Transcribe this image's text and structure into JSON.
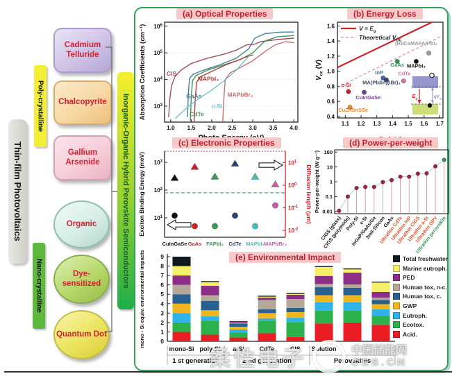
{
  "left_panel": {
    "main": "Thin-film Photovoltaics",
    "poly": "Poly-crystalline",
    "nano": "Nano-crystalline",
    "perovskite": "Inorganic-Organic Hybrid Perovskite Semiconductors",
    "items": [
      {
        "label": "Cadmium Telluride"
      },
      {
        "label": "Chalcopyrite"
      },
      {
        "label": "Gallium Arsenide"
      },
      {
        "label": "Organic"
      },
      {
        "label": "Dye-sensitized"
      },
      {
        "label": "Quantum Dot"
      }
    ]
  },
  "panels": {
    "a": "(a) Optical Properties",
    "b": "(b) Energy Loss",
    "c": "(c) Electronic Properties",
    "d": "(d) Power-per-weight",
    "e": "(e) Environmental Impact"
  },
  "wm": {
    "cn1": "柔性电子",
    "cn2": "中国储能网",
    "site": "CES.CN"
  },
  "chart_data": [
    {
      "id": "a",
      "type": "line",
      "title": "(a) Optical Properties",
      "xlabel": "Photo Energy (eV)",
      "ylabel": "Absorption Coefficients (cm⁻¹)",
      "xticks": [
        1.0,
        1.5,
        2.0,
        2.5,
        3.0,
        3.5,
        4.0
      ],
      "yticks_exp": [
        3,
        4,
        5,
        6
      ],
      "xrange": [
        0.85,
        4.1
      ],
      "ylog_range": [
        2.4,
        6.15
      ],
      "series": [
        {
          "name": "CIS",
          "color": "#9b4d62",
          "label_pos": [
            0.9,
            4.15
          ],
          "points": [
            [
              0.95,
              2.6
            ],
            [
              0.98,
              3.3
            ],
            [
              1.02,
              3.75
            ],
            [
              1.1,
              4.1
            ],
            [
              1.25,
              4.35
            ],
            [
              1.5,
              4.6
            ],
            [
              1.9,
              4.8
            ],
            [
              2.3,
              4.95
            ],
            [
              2.6,
              5.1
            ],
            [
              2.85,
              5.3
            ],
            [
              3.0,
              5.3
            ],
            [
              3.2,
              5.42
            ],
            [
              3.6,
              5.5
            ],
            [
              4.0,
              5.55
            ]
          ]
        },
        {
          "name": "GaAs",
          "color": "#44809c",
          "label_pos": [
            1.38,
            3.3
          ],
          "points": [
            [
              1.41,
              2.6
            ],
            [
              1.43,
              3.5
            ],
            [
              1.46,
              4.05
            ],
            [
              1.55,
              4.2
            ],
            [
              1.8,
              4.35
            ],
            [
              2.2,
              4.55
            ],
            [
              2.6,
              4.8
            ],
            [
              2.9,
              5.15
            ],
            [
              3.05,
              5.55
            ],
            [
              3.3,
              5.72
            ],
            [
              3.7,
              5.78
            ],
            [
              4.0,
              5.78
            ]
          ]
        },
        {
          "name": "CdTe",
          "color": "#3f9456",
          "label_pos": [
            1.46,
            2.62
          ],
          "points": [
            [
              1.48,
              2.45
            ],
            [
              1.5,
              3.3
            ],
            [
              1.53,
              3.95
            ],
            [
              1.62,
              4.15
            ],
            [
              1.9,
              4.35
            ],
            [
              2.3,
              4.55
            ],
            [
              2.7,
              4.75
            ],
            [
              3.0,
              5.0
            ],
            [
              3.3,
              5.45
            ],
            [
              3.6,
              5.6
            ],
            [
              4.0,
              5.65
            ]
          ]
        },
        {
          "name": "MAPbI₃",
          "color": "#b2413e",
          "label_pos": [
            1.66,
            3.95
          ],
          "points": [
            [
              1.57,
              2.4
            ],
            [
              1.6,
              3.3
            ],
            [
              1.63,
              3.9
            ],
            [
              1.72,
              4.1
            ],
            [
              2.0,
              4.3
            ],
            [
              2.35,
              4.55
            ],
            [
              2.6,
              4.7
            ],
            [
              2.85,
              4.85
            ],
            [
              3.0,
              4.92
            ]
          ]
        },
        {
          "name": "MAPbBr₃",
          "color": "#cb6d6d",
          "label_pos": [
            2.38,
            3.35
          ],
          "points": [
            [
              2.27,
              2.45
            ],
            [
              2.3,
              3.4
            ],
            [
              2.33,
              4.0
            ],
            [
              2.45,
              4.25
            ],
            [
              2.7,
              4.45
            ],
            [
              3.0,
              4.7
            ],
            [
              3.3,
              5.05
            ],
            [
              3.55,
              5.3
            ],
            [
              3.8,
              5.42
            ],
            [
              4.0,
              5.38
            ]
          ]
        },
        {
          "name": "c-Si",
          "color": "#72c3c9",
          "label_pos": [
            2.0,
            2.92
          ],
          "points": [
            [
              1.12,
              2.55
            ],
            [
              1.4,
              2.95
            ],
            [
              1.7,
              3.3
            ],
            [
              2.0,
              3.6
            ],
            [
              2.3,
              3.95
            ],
            [
              2.6,
              4.35
            ],
            [
              2.8,
              4.7
            ],
            [
              2.95,
              4.95
            ]
          ]
        }
      ]
    },
    {
      "id": "b",
      "type": "scatter",
      "title": "(b) Energy Loss",
      "xlabel": {
        "pre": "E",
        "sub": "g",
        "post": " (eV)",
        "italic": true
      },
      "ylabel": {
        "pre": "V",
        "sub": "oc",
        "post": " (V)",
        "italic": true
      },
      "xticks": [
        1.1,
        1.2,
        1.3,
        1.4,
        1.5,
        1.6,
        1.7
      ],
      "yticks": [
        0.4,
        0.6,
        0.8,
        1.0,
        1.2,
        1.4,
        1.6
      ],
      "xrange": [
        1.05,
        1.72
      ],
      "yrange": [
        0.38,
        1.65
      ],
      "lines": [
        {
          "x1": 1.05,
          "y1": 1.05,
          "x2": 1.72,
          "y2": 1.72,
          "color": "#c9232b",
          "width": 2.2,
          "dash": ""
        },
        {
          "x1": 1.05,
          "y1": 0.785,
          "x2": 1.72,
          "y2": 1.475,
          "color": "#d98aa5",
          "width": 1.2,
          "dash": "4,3"
        }
      ],
      "legend": [
        {
          "pre": "V = E",
          "sub": "g",
          "italic": true
        },
        {
          "pre": "Theoretical V",
          "sub": "OC",
          "italic": true
        }
      ],
      "points": [
        {
          "label": "c-Si",
          "x": 1.12,
          "y": 0.73,
          "color": "#cc2127",
          "lx": 1.105,
          "ly": 0.795
        },
        {
          "label": "CuZnSnSSe",
          "x": 1.13,
          "y": 0.52,
          "color": "#e8872b",
          "lx": 1.15,
          "ly": 0.465
        },
        {
          "label": "CuInGaSe",
          "x": 1.22,
          "y": 0.72,
          "color": "#7b3f8e",
          "lx": 1.245,
          "ly": 0.63
        },
        {
          "label": "InP",
          "x": 1.34,
          "y": 0.91,
          "color": "#4468b2",
          "lx": 1.315,
          "ly": 0.96
        },
        {
          "label": "MA(PbSn)(IBr)₃",
          "x": 1.36,
          "y": 0.885,
          "color": "#3a4660",
          "lx": 1.33,
          "ly": 0.825
        },
        {
          "label": "GaAs",
          "x": 1.43,
          "y": 1.13,
          "color": "#2f9456",
          "lx": 1.43,
          "ly": 1.06
        },
        {
          "label": "CdTe",
          "x": 1.47,
          "y": 0.87,
          "color": "#d873a8",
          "lx": 1.475,
          "ly": 0.945
        },
        {
          "label": "MAPbI₃",
          "x": 1.55,
          "y": 1.13,
          "color": "#101010",
          "lx": 1.55,
          "ly": 1.045
        },
        {
          "label": "(RbCsMAFA)PbI₃",
          "x": 1.63,
          "y": 1.24,
          "color": "#9a9a9a",
          "lx": 1.55,
          "ly": 1.345
        }
      ],
      "inset": {
        "cb_color": "#8d8dcb",
        "vb_color": "#c8dc72",
        "eg": {
          "pre": "E",
          "sub": "g",
          "italic": true
        },
        "qvoc": {
          "pre": "qV",
          "sub": "oc",
          "italic": true
        }
      }
    },
    {
      "id": "c",
      "type": "dual-scatter",
      "title": "(c) Electronic Properties",
      "ylabel_left": "Exciton Binding Energy (meV)",
      "ylabel_right": "Diffusion length (μm)",
      "left_ticks_exp": [
        1,
        2,
        3
      ],
      "right_ticks_exp": [
        1,
        0,
        -1,
        -2
      ],
      "left_log_range": [
        0.3,
        3.4
      ],
      "right_log_range": [
        -2.3,
        1.5
      ],
      "dashed_line_meV": 80,
      "dashed_color": "#3fa8a8",
      "categories": [
        {
          "label": "CuInGaSe",
          "color": "#111111"
        },
        {
          "label": "GaAs",
          "color": "#cc2127"
        },
        {
          "label": "FAPbI₃",
          "color": "#3f9456"
        },
        {
          "label": "CdTe",
          "color": "#2f3f6e"
        },
        {
          "label": "MAPbI₃",
          "color": "#45bdb5"
        },
        {
          "label": "MAPbBr₃",
          "color": "#c45fa5"
        }
      ],
      "binding_energy_meV": [
        12,
        5,
        5,
        12,
        5,
        28
      ],
      "diffusion_length_um": [
        2.1,
        6.5,
        2.4,
        9,
        2.4,
        1.1
      ]
    },
    {
      "id": "d",
      "type": "scatter-line-log",
      "title": "(d) Power-per-weight",
      "ylabel": "Power-per-weight (W g⁻¹)",
      "yticks": [
        {
          "label": "100",
          "lv": 2
        },
        {
          "label": "10",
          "lv": 1
        },
        {
          "label": "1",
          "lv": 0
        },
        {
          "label": "0.1",
          "lv": -1
        },
        {
          "label": "0.01",
          "lv": -2
        }
      ],
      "ylog_range": [
        -2.15,
        2.15
      ],
      "categories": [
        {
          "label": "CIGS (glass)",
          "color": "#111111"
        },
        {
          "label": "CIGS (polyimide)",
          "color": "#111111"
        },
        {
          "label": "Poly-Si",
          "color": "#111111"
        },
        {
          "label": "c-Si",
          "color": "#111111"
        },
        {
          "label": "InGaP/GaAs/Ge",
          "color": "#111111"
        },
        {
          "label": "3mil-Silicon",
          "color": "#111111"
        },
        {
          "label": "GaAs",
          "color": "#111111"
        },
        {
          "label": "Ultrathin CdTe",
          "color": "#e04f28"
        },
        {
          "label": "Ultrathin InP",
          "color": "#e04f28"
        },
        {
          "label": "Ultrathin CIGS",
          "color": "#e04f28"
        },
        {
          "label": "Ultrathin a-Si",
          "color": "#e04f28"
        },
        {
          "label": "Ultrathin OPV",
          "color": "#e04f28"
        },
        {
          "label": "Ultrathin perovskite",
          "color": "#2f9456"
        }
      ],
      "values": [
        0.011,
        0.1,
        0.38,
        0.45,
        0.45,
        0.95,
        1.3,
        2.2,
        2.2,
        3.5,
        3.7,
        11,
        30
      ],
      "point_color": "#9e2346",
      "last_point_color": "#2f9456",
      "stem_color": "#d391a2",
      "line_color": "#bcd8bc"
    },
    {
      "id": "e",
      "type": "stacked-bar",
      "title": "(e) Environmental Impact",
      "ylabel": "mono - Si equiv. environmental impacts",
      "ylim": [
        0,
        9
      ],
      "categories": [
        "mono-Si",
        "poly-Si",
        "a-Si",
        "CdTe",
        "CIS",
        "Solution",
        "",
        ""
      ],
      "group_labels": [
        {
          "label": "1 st generation",
          "from": 0,
          "to": 1
        },
        {
          "label": "2 nd generation",
          "from": 2,
          "to": 4
        },
        {
          "label": "Perovskites",
          "from": 5,
          "to": 7
        }
      ],
      "legend": [
        {
          "label": "Total freshwater",
          "color": "#101820"
        },
        {
          "label": "Marine eutroph.",
          "color": "#f5ee67"
        },
        {
          "label": "PED",
          "color": "#8c2d88"
        },
        {
          "label": "Human tox, n-c.",
          "color": "#b5a898"
        },
        {
          "label": "Human tox, c.",
          "color": "#28618f"
        },
        {
          "label": "GWP",
          "color": "#f0b61f"
        },
        {
          "label": "Eutroph.",
          "color": "#2fb4e9"
        },
        {
          "label": "Ecotox.",
          "color": "#2bb24c"
        },
        {
          "label": "Acid.",
          "color": "#ec1c24"
        }
      ],
      "values": [
        [
          1,
          1,
          1,
          1,
          1,
          1,
          1,
          1,
          1
        ],
        [
          0.7,
          1.5,
          0.45,
          0.65,
          1.0,
          0.6,
          1.0,
          0.4,
          0.1
        ],
        [
          0.4,
          0.55,
          0.3,
          0.3,
          0.35,
          0.08,
          0.12,
          0,
          0.05
        ],
        [
          0.85,
          1.35,
          0.25,
          0.55,
          0.4,
          1.0,
          0.25,
          0.1,
          0.1
        ],
        [
          0.45,
          1.6,
          0.45,
          0.6,
          0.45,
          0.95,
          0.45,
          0.1,
          0.1
        ],
        [
          1.9,
          1.35,
          0.9,
          0.75,
          0.85,
          0.35,
          0.85,
          0.95,
          0.1
        ],
        [
          2.0,
          1.3,
          0.85,
          0.75,
          0.8,
          0.35,
          1.25,
          0.35,
          0.1
        ],
        [
          1.75,
          0.95,
          0.7,
          0.55,
          0.45,
          0.25,
          0.6,
          1.0,
          0.1
        ]
      ]
    }
  ]
}
